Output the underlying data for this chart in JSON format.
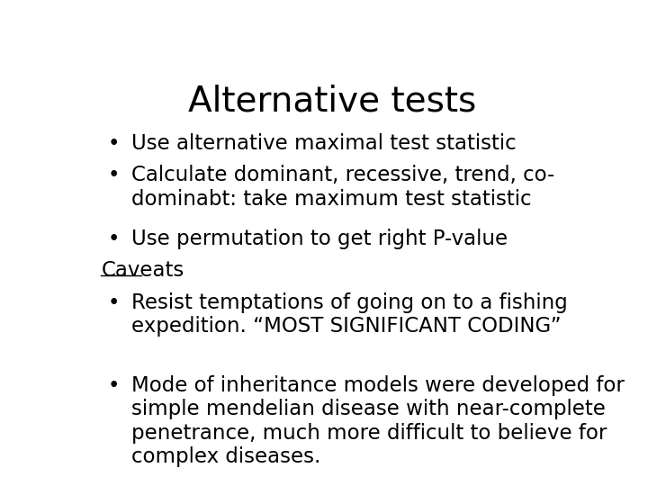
{
  "title": "Alternative tests",
  "background_color": "#ffffff",
  "text_color": "#000000",
  "title_fontsize": 28,
  "body_fontsize": 16.5,
  "title_font": "DejaVu Sans",
  "body_font": "DejaVu Sans",
  "lines": [
    {
      "type": "bullet",
      "text": "Use alternative maximal test statistic"
    },
    {
      "type": "bullet",
      "text": "Calculate dominant, recessive, trend, co-\ndominabt: take maximum test statistic"
    },
    {
      "type": "bullet",
      "text": "Use permutation to get right P-value"
    },
    {
      "type": "header",
      "text": "Caveats",
      "underline": true
    },
    {
      "type": "bullet",
      "text": "Resist temptations of going on to a fishing\nexpedition. “MOST SIGNIFICANT CODING”"
    },
    {
      "type": "spacer"
    },
    {
      "type": "bullet",
      "text": "Mode of inheritance models were developed for\nsimple mendelian disease with near-complete\npenetrance, much more difficult to believe for\ncomplex diseases."
    }
  ]
}
